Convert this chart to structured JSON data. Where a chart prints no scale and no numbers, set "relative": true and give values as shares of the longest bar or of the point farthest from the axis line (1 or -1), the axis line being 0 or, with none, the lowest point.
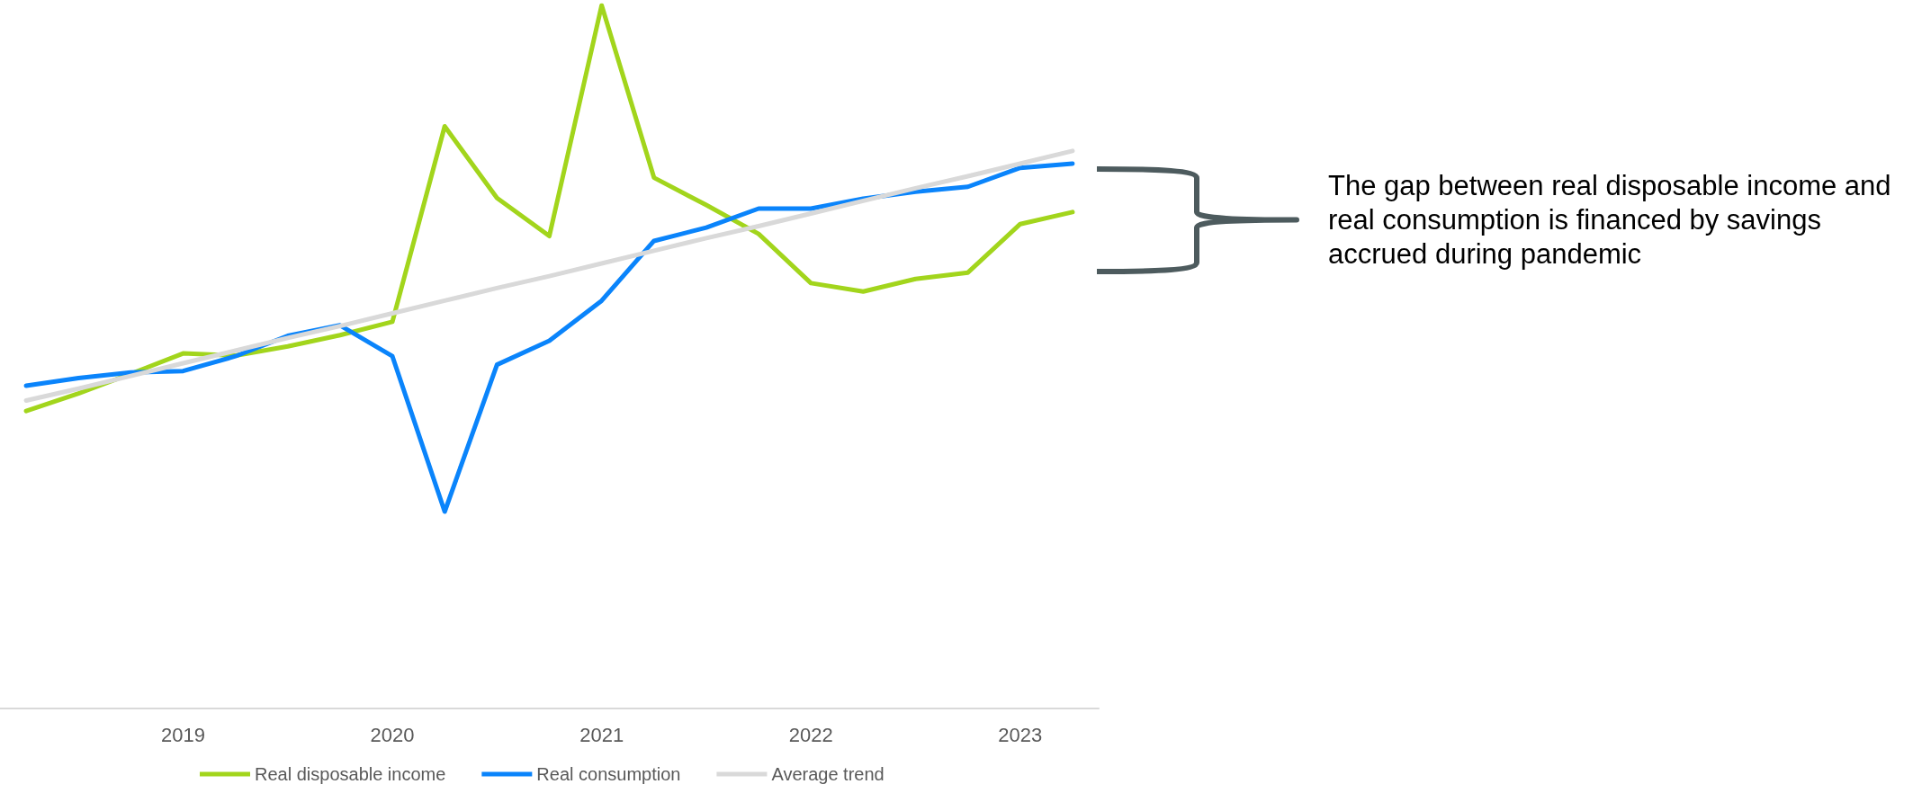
{
  "chart_data": {
    "type": "line",
    "relative": true,
    "categories": [
      null,
      null,
      null,
      "2019",
      null,
      null,
      null,
      "2020",
      null,
      null,
      null,
      "2021",
      null,
      null,
      null,
      "2022",
      null,
      null,
      null,
      "2023",
      null
    ],
    "series": [
      {
        "name": "Real disposable income",
        "color": "#a2d51c",
        "values": [
          0.423,
          0.448,
          0.476,
          0.505,
          0.502,
          0.515,
          0.531,
          0.55,
          0.828,
          0.726,
          0.672,
          1,
          0.755,
          0.716,
          0.675,
          0.605,
          0.593,
          0.611,
          0.62,
          0.689,
          0.706
        ]
      },
      {
        "name": "Real consumption",
        "color": "#0a84fb",
        "values": [
          0.459,
          0.47,
          0.478,
          0.48,
          0.501,
          0.53,
          0.545,
          0.501,
          0.28,
          0.489,
          0.523,
          0.58,
          0.665,
          0.684,
          0.711,
          0.711,
          0.725,
          0.735,
          0.742,
          0.769,
          0.775
        ]
      },
      {
        "name": "Average trend",
        "color": "#d9d9d9",
        "values": [
          0.438,
          0.455,
          0.473,
          0.491,
          0.509,
          0.527,
          0.544,
          0.562,
          0.58,
          0.598,
          0.615,
          0.633,
          0.651,
          0.669,
          0.686,
          0.704,
          0.722,
          0.74,
          0.757,
          0.775,
          0.793
        ]
      }
    ],
    "annotations": [
      "The gap between real disposable income and real consumption is financed by savings accrued during pandemic"
    ],
    "legend": "bottom",
    "marker": "none",
    "line_style": "solid"
  }
}
